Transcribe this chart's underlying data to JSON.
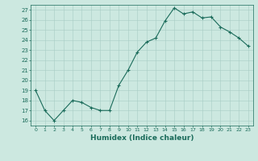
{
  "xlabel": "Humidex (Indice chaleur)",
  "ylabel": "",
  "x": [
    0,
    1,
    2,
    3,
    4,
    5,
    6,
    7,
    8,
    9,
    10,
    11,
    12,
    13,
    14,
    15,
    16,
    17,
    18,
    19,
    20,
    21,
    22,
    23
  ],
  "y": [
    19,
    17,
    16,
    17,
    18,
    17.8,
    17.3,
    17,
    17,
    19.5,
    21,
    22.8,
    23.8,
    24.2,
    25.9,
    27.2,
    26.6,
    26.8,
    26.2,
    26.3,
    25.3,
    24.8,
    24.2,
    23.4
  ],
  "line_color": "#1a6b5a",
  "marker": "+",
  "marker_size": 2.5,
  "marker_linewidth": 0.8,
  "linewidth": 0.8,
  "bg_color": "#cce8e0",
  "grid_color": "#a8ccc4",
  "ylim": [
    15.5,
    27.5
  ],
  "xlim": [
    -0.5,
    23.5
  ],
  "yticks": [
    16,
    17,
    18,
    19,
    20,
    21,
    22,
    23,
    24,
    25,
    26,
    27
  ],
  "xtick_labels": [
    "0",
    "1",
    "2",
    "3",
    "4",
    "5",
    "6",
    "7",
    "8",
    "9",
    "10",
    "11",
    "12",
    "13",
    "14",
    "15",
    "16",
    "17",
    "18",
    "19",
    "20",
    "21",
    "22",
    "23"
  ],
  "tick_fontsize": 5.0,
  "xlabel_fontsize": 6.5,
  "spine_color": "#1a6b5a"
}
